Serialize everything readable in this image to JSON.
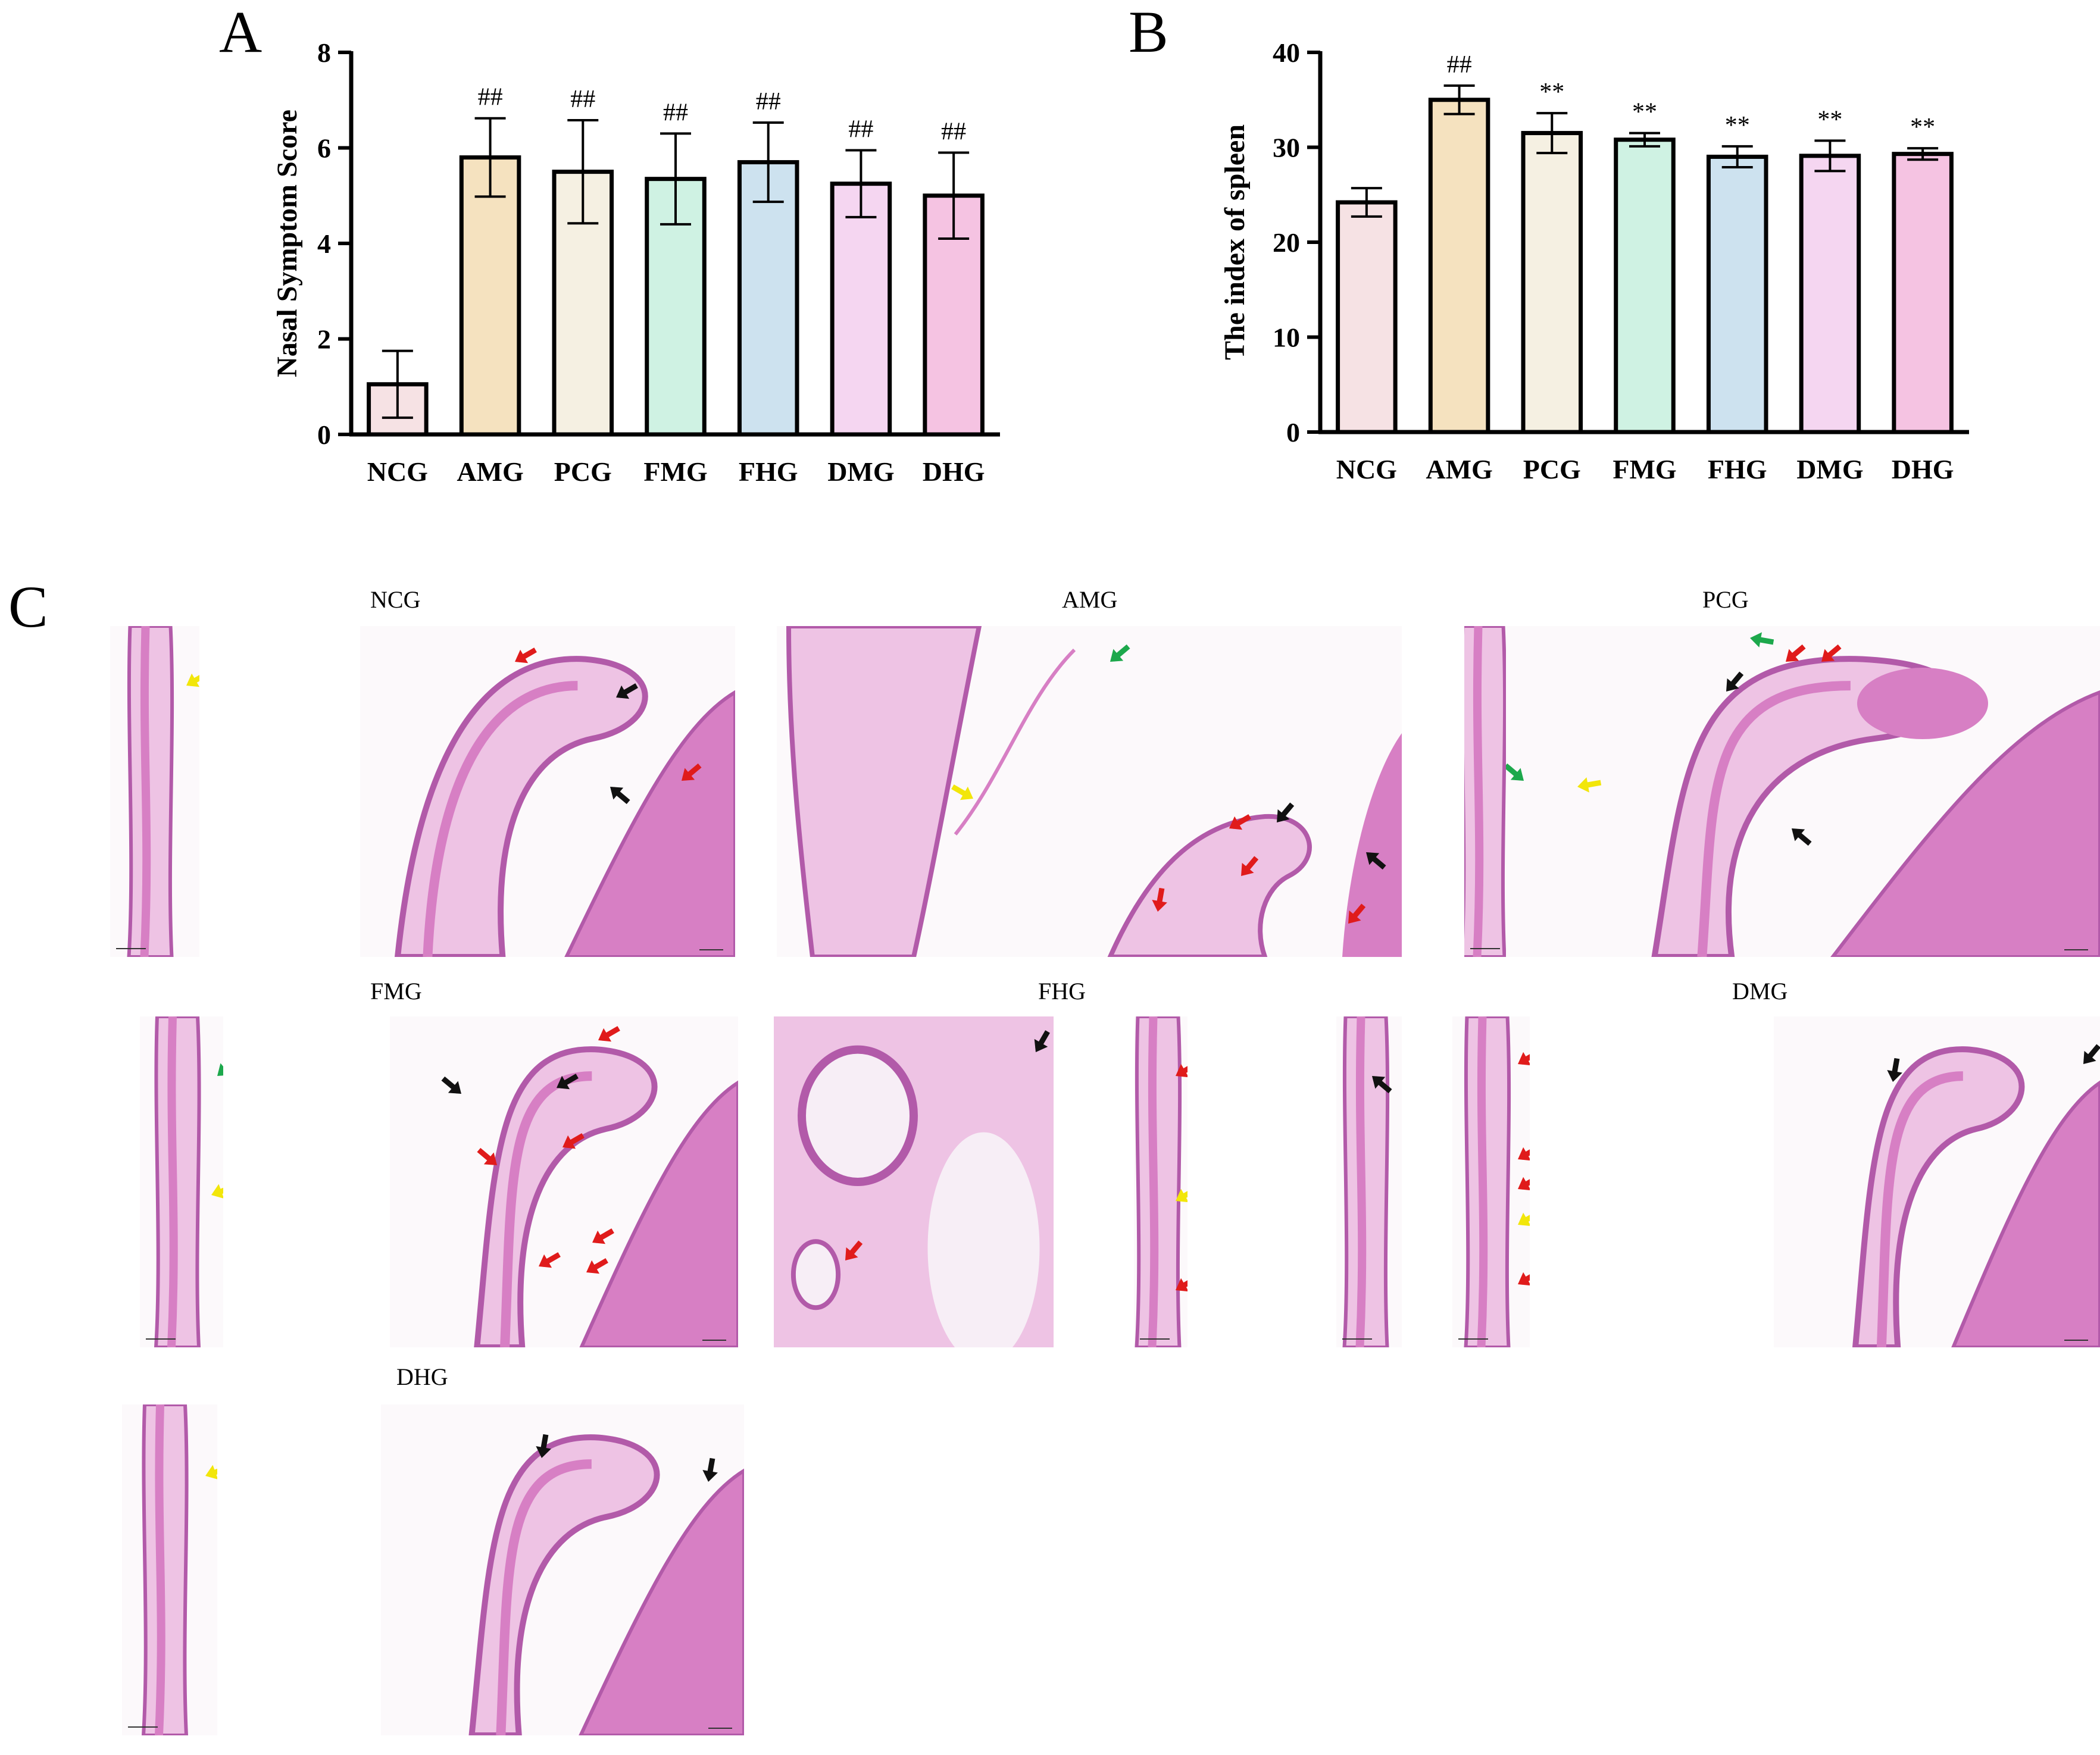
{
  "figure": {
    "panel_letters": {
      "a": "A",
      "b": "B",
      "c": "C"
    }
  },
  "colors": {
    "NCG": "#f6e2e4",
    "AMG": "#f5e2bf",
    "PCG": "#f5f0e2",
    "FMG": "#cff2e3",
    "FHG": "#cde2ef",
    "DMG": "#f5d6f1",
    "DHG": "#f5c3e2",
    "tissue_base": "#d77fc4",
    "tissue_light": "#eec3e4",
    "tissue_dark": "#b25aa9",
    "lumen": "#f7eef6",
    "arrow_black": "#111111",
    "arrow_red": "#e01b1b",
    "arrow_yellow": "#f2e60a",
    "arrow_green": "#1da84c"
  },
  "chart_data": [
    {
      "type": "bar",
      "id": "A",
      "title": "",
      "xlabel": "",
      "ylabel": "Nasal Symptom Score",
      "ylim": [
        0,
        8
      ],
      "yticks": [
        0,
        2,
        4,
        6,
        8
      ],
      "categories": [
        "NCG",
        "AMG",
        "PCG",
        "FMG",
        "FHG",
        "DMG",
        "DHG"
      ],
      "values": [
        1.05,
        5.8,
        5.5,
        5.35,
        5.7,
        5.25,
        5.0
      ],
      "errors": [
        0.7,
        0.82,
        1.08,
        0.95,
        0.83,
        0.7,
        0.9
      ],
      "annotations": [
        "",
        "##",
        "##",
        "##",
        "##",
        "##",
        "##"
      ]
    },
    {
      "type": "bar",
      "id": "B",
      "title": "",
      "xlabel": "",
      "ylabel": "The index of spleen",
      "ylim": [
        0,
        40
      ],
      "yticks": [
        0,
        10,
        20,
        30,
        40
      ],
      "categories": [
        "NCG",
        "AMG",
        "PCG",
        "FMG",
        "FHG",
        "DMG",
        "DHG"
      ],
      "values": [
        24.2,
        35.0,
        31.5,
        30.8,
        29.0,
        29.1,
        29.3
      ],
      "errors": [
        1.5,
        1.5,
        2.1,
        0.7,
        1.1,
        1.6,
        0.6
      ],
      "annotations": [
        "",
        "##",
        "**",
        "**",
        "**",
        "**",
        "**"
      ]
    }
  ],
  "histology": {
    "groups": [
      {
        "label": "NCG"
      },
      {
        "label": "AMG"
      },
      {
        "label": "PCG"
      },
      {
        "label": "FMG"
      },
      {
        "label": "FHG"
      },
      {
        "label": "DMG"
      },
      {
        "label": "DHG"
      }
    ]
  }
}
